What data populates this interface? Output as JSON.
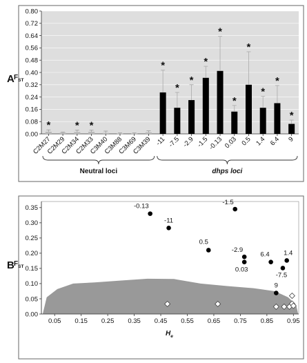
{
  "panel_labels": {
    "a": "A",
    "b": "B"
  },
  "chart_data": [
    {
      "type": "bar",
      "ylabel": "F",
      "ylabel_sub": "ST",
      "ylim": [
        0,
        0.8
      ],
      "yticks": [
        "0.00",
        "0.08",
        "0.16",
        "0.24",
        "0.32",
        "0.40",
        "0.48",
        "0.56",
        "0.64",
        "0.72",
        "0.80"
      ],
      "categories": [
        "C2M27",
        "C2M29",
        "C2M34",
        "C2M33",
        "C3M40",
        "C3M88",
        "C3M69",
        "C3M39",
        "-11",
        "-7.5",
        "-2.9",
        "-1.5",
        "-0.13",
        "0.03",
        "0.5",
        "1.4",
        "6.4",
        "9"
      ],
      "values": [
        0.014,
        0.008,
        0.012,
        0.014,
        0.006,
        0.002,
        0.002,
        0.01,
        0.27,
        0.17,
        0.22,
        0.365,
        0.41,
        0.145,
        0.32,
        0.17,
        0.2,
        0.065
      ],
      "errors": [
        0.012,
        0.004,
        0.012,
        0.01,
        0.012,
        0.004,
        0.004,
        0.01,
        0.145,
        0.1,
        0.1,
        0.075,
        0.225,
        0.04,
        0.215,
        0.075,
        0.115,
        0.025
      ],
      "significant": [
        true,
        false,
        true,
        true,
        false,
        false,
        false,
        false,
        true,
        true,
        true,
        true,
        true,
        true,
        true,
        true,
        true,
        true
      ],
      "star_symbol": "*",
      "groups": [
        {
          "label": "Neutral loci",
          "italic": false,
          "from": 0,
          "to": 7
        },
        {
          "label": "dhps loci",
          "italic": true,
          "from": 8,
          "to": 17
        }
      ],
      "colors": {
        "neutral": "#b8b8b8",
        "dhps": "#000000",
        "background": "#dedede"
      }
    },
    {
      "type": "scatter",
      "xlabel": "H",
      "xlabel_sub": "e",
      "ylabel": "F",
      "ylabel_sub": "ST",
      "xlim": [
        0,
        0.97
      ],
      "ylim": [
        0,
        0.37
      ],
      "xticks": [
        "0.05",
        "0.15",
        "0.25",
        "0.35",
        "0.45",
        "0.55",
        "0.65",
        "0.75",
        "0.85",
        "0.95"
      ],
      "yticks": [
        "0.00",
        "0.05",
        "0.10",
        "0.15",
        "0.20",
        "0.25",
        "0.30",
        "0.35"
      ],
      "dhps_points": [
        {
          "x": 0.41,
          "y": 0.33,
          "label": "-0.13"
        },
        {
          "x": 0.48,
          "y": 0.283,
          "label": "-11"
        },
        {
          "x": 0.73,
          "y": 0.345,
          "label": "-1.5"
        },
        {
          "x": 0.63,
          "y": 0.21,
          "label": "0.5"
        },
        {
          "x": 0.765,
          "y": 0.188,
          "label": "-2.9"
        },
        {
          "x": 0.765,
          "y": 0.171,
          "label": "0.03"
        },
        {
          "x": 0.865,
          "y": 0.171,
          "label": "6.4"
        },
        {
          "x": 0.925,
          "y": 0.176,
          "label": "1.4"
        },
        {
          "x": 0.91,
          "y": 0.151,
          "label": "-7.5"
        },
        {
          "x": 0.885,
          "y": 0.069,
          "label": "9"
        }
      ],
      "neutral_points": [
        {
          "x": 0.475,
          "y": 0.033
        },
        {
          "x": 0.665,
          "y": 0.033
        },
        {
          "x": 0.885,
          "y": 0.024
        },
        {
          "x": 0.915,
          "y": 0.024
        },
        {
          "x": 0.935,
          "y": 0.024
        },
        {
          "x": 0.945,
          "y": 0.034
        },
        {
          "x": 0.95,
          "y": 0.027
        },
        {
          "x": 0.945,
          "y": 0.06
        }
      ],
      "envelope": [
        [
          0.005,
          0.0
        ],
        [
          0.02,
          0.055
        ],
        [
          0.06,
          0.082
        ],
        [
          0.12,
          0.1
        ],
        [
          0.2,
          0.104
        ],
        [
          0.3,
          0.11
        ],
        [
          0.4,
          0.116
        ],
        [
          0.5,
          0.115
        ],
        [
          0.6,
          0.1
        ],
        [
          0.7,
          0.092
        ],
        [
          0.8,
          0.085
        ],
        [
          0.88,
          0.075
        ],
        [
          0.93,
          0.055
        ],
        [
          0.96,
          0.03
        ],
        [
          0.968,
          0.0
        ]
      ],
      "colors": {
        "envelope": "#999999",
        "dhps": "#000000",
        "neutral_fill": "#ffffff"
      }
    }
  ]
}
